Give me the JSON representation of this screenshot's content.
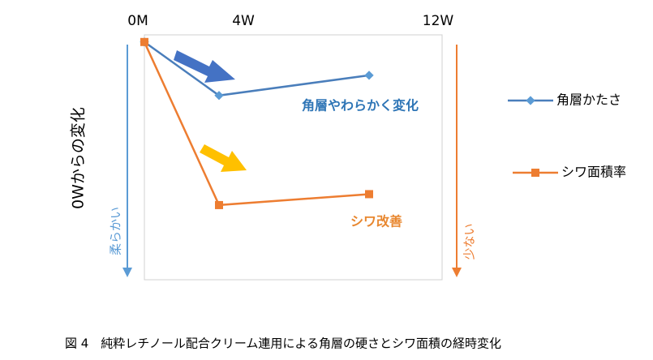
{
  "chart_data": {
    "type": "line",
    "categories": [
      "0M",
      "4W",
      "12W"
    ],
    "series": [
      {
        "name": "角層かたさ",
        "color": "#4a7ebb",
        "marker_color": "#5b9bd5",
        "marker": "diamond",
        "values": [
          0,
          -22.5,
          -14
        ]
      },
      {
        "name": "シワ面積率",
        "color": "#ed7d31",
        "marker_color": "#ed7d31",
        "marker": "square",
        "values": [
          0,
          -68.6,
          -64
        ]
      }
    ],
    "ylim": [
      -100,
      3
    ],
    "ylabel": "0Wからの変化",
    "left_arrow_label": "柔らかい",
    "right_arrow_label": "少ない",
    "annotations": [
      "角層やわらかく変化",
      "シワ改善"
    ],
    "caption": "図 4　純粋レチノール配合クリーム連用による角層の硬さとシワ面積の経時変化"
  }
}
